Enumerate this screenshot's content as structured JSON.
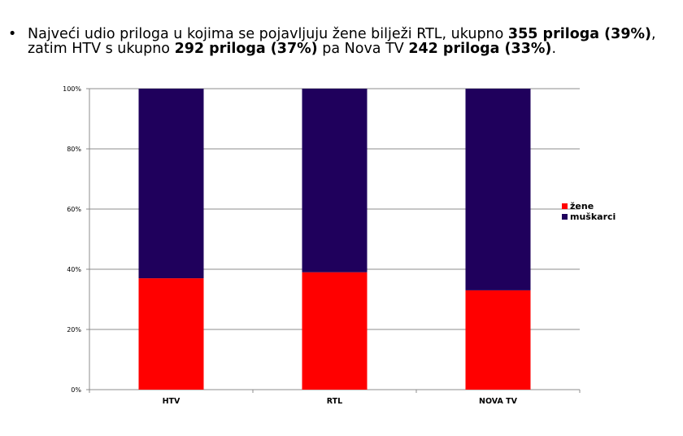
{
  "bullet": {
    "symbol": "•",
    "line1_pre": "Najveći udio priloga u kojima se pojavljuju žene bilježi RTL, ukupno ",
    "line1_bold": "355 priloga (39%)",
    "line1_post": ",",
    "line2_pre": "zatim HTV s ukupno ",
    "line2_bold1": "292 priloga (37%)",
    "line2_mid": " pa Nova TV ",
    "line2_bold2": "242 priloga (33%)",
    "line2_post": "."
  },
  "chart_data": {
    "type": "bar",
    "stacked": true,
    "categories": [
      "HTV",
      "RTL",
      "NOVA TV"
    ],
    "series": [
      {
        "name": "žene",
        "values": [
          37,
          39,
          33
        ],
        "color": "#ff0000"
      },
      {
        "name": "muškarci",
        "values": [
          63,
          61,
          67
        ],
        "color": "#1f005c"
      }
    ],
    "yticks": [
      "0%",
      "20%",
      "40%",
      "60%",
      "80%",
      "100%"
    ],
    "ylim": [
      0,
      100
    ],
    "grid": true,
    "legend_position": "right"
  }
}
